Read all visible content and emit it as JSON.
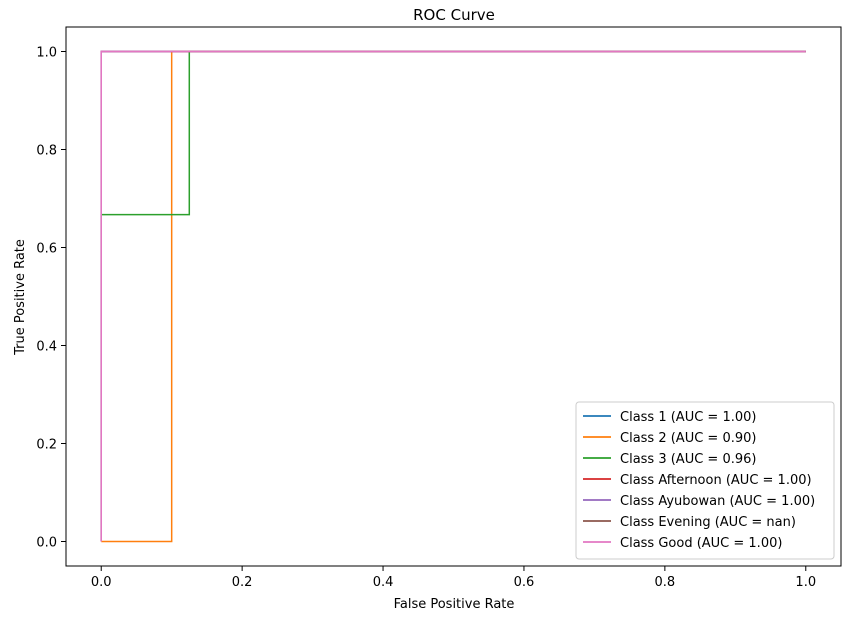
{
  "chart_data": {
    "type": "line",
    "title": "ROC Curve",
    "xlabel": "False Positive Rate",
    "ylabel": "True Positive Rate",
    "xlim": [
      -0.05,
      1.05
    ],
    "ylim": [
      -0.05,
      1.05
    ],
    "xticks": [
      0.0,
      0.2,
      0.4,
      0.6,
      0.8,
      1.0
    ],
    "yticks": [
      0.0,
      0.2,
      0.4,
      0.6,
      0.8,
      1.0
    ],
    "xtick_labels": [
      "0.0",
      "0.2",
      "0.4",
      "0.6",
      "0.8",
      "1.0"
    ],
    "ytick_labels": [
      "0.0",
      "0.2",
      "0.4",
      "0.6",
      "0.8",
      "1.0"
    ],
    "grid": false,
    "legend_position": "lower-right",
    "series": [
      {
        "name": "Class 1 (AUC = 1.00)",
        "color": "#1f77b4",
        "x": [
          0.0,
          0.0,
          1.0
        ],
        "y": [
          0.0,
          1.0,
          1.0
        ]
      },
      {
        "name": "Class 2 (AUC = 0.90)",
        "color": "#ff7f0e",
        "x": [
          0.0,
          0.1,
          0.1,
          1.0
        ],
        "y": [
          0.0,
          0.0,
          1.0,
          1.0
        ]
      },
      {
        "name": "Class 3 (AUC = 0.96)",
        "color": "#2ca02c",
        "x": [
          0.0,
          0.0,
          0.125,
          0.125,
          1.0
        ],
        "y": [
          0.0,
          0.667,
          0.667,
          1.0,
          1.0
        ]
      },
      {
        "name": "Class Afternoon (AUC = 1.00)",
        "color": "#d62728",
        "x": [
          0.0,
          0.0,
          1.0
        ],
        "y": [
          0.0,
          1.0,
          1.0
        ]
      },
      {
        "name": "Class Ayubowan (AUC = 1.00)",
        "color": "#9467bd",
        "x": [
          0.0,
          0.0,
          1.0
        ],
        "y": [
          0.0,
          1.0,
          1.0
        ]
      },
      {
        "name": "Class Evening (AUC = nan)",
        "color": "#8c564b",
        "x": [],
        "y": []
      },
      {
        "name": "Class Good (AUC = 1.00)",
        "color": "#e377c2",
        "x": [
          0.0,
          0.0,
          1.0
        ],
        "y": [
          0.0,
          1.0,
          1.0
        ]
      }
    ]
  }
}
